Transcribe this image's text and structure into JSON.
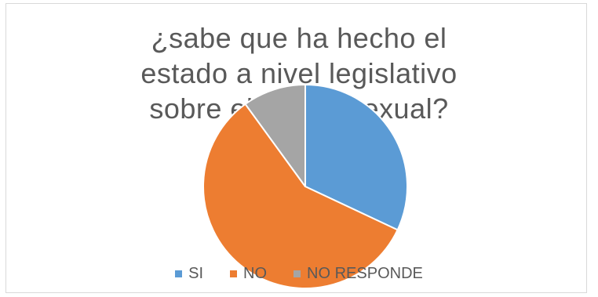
{
  "chart_data": {
    "type": "pie",
    "title_lines": [
      "¿sabe que ha hecho el",
      "estado a nivel legislativo",
      "sobre el abuso sexual?"
    ],
    "categories": [
      "SI",
      "NO",
      "NO RESPONDE"
    ],
    "values": [
      32,
      58,
      10
    ],
    "colors": [
      "#5b9bd5",
      "#ed7d31",
      "#a5a5a5"
    ],
    "legend_position": "bottom"
  }
}
